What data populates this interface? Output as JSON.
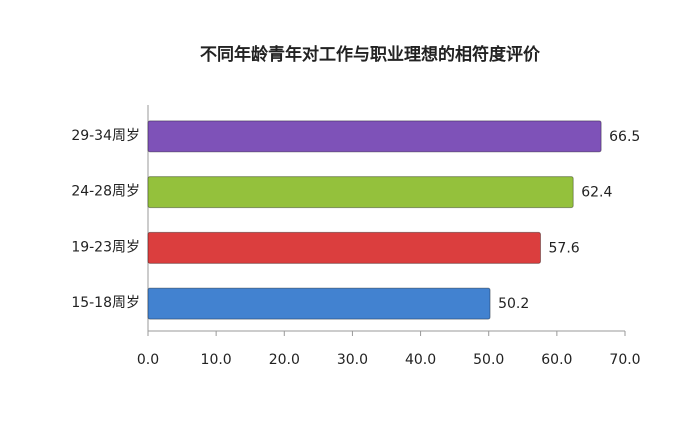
{
  "chart_data": {
    "type": "hbar",
    "title": "不同年龄青年对工作与职业理想的相符度评价",
    "categories": [
      "29-34周岁",
      "24-28周岁",
      "19-23周岁",
      "15-18周岁"
    ],
    "values": [
      66.5,
      62.4,
      57.6,
      50.2
    ],
    "colors": [
      "#7e52b8",
      "#94c13c",
      "#db3e3e",
      "#4282d0"
    ],
    "xlim": [
      0,
      70
    ],
    "xticks": [
      {
        "value": 0,
        "label": "0.0"
      },
      {
        "value": 10,
        "label": "10.0"
      },
      {
        "value": 20,
        "label": "20.0"
      },
      {
        "value": 30,
        "label": "30.0"
      },
      {
        "value": 40,
        "label": "40.0"
      },
      {
        "value": 50,
        "label": "50.0"
      },
      {
        "value": 60,
        "label": "60.0"
      },
      {
        "value": 70,
        "label": "70.0"
      }
    ],
    "grid": false
  }
}
